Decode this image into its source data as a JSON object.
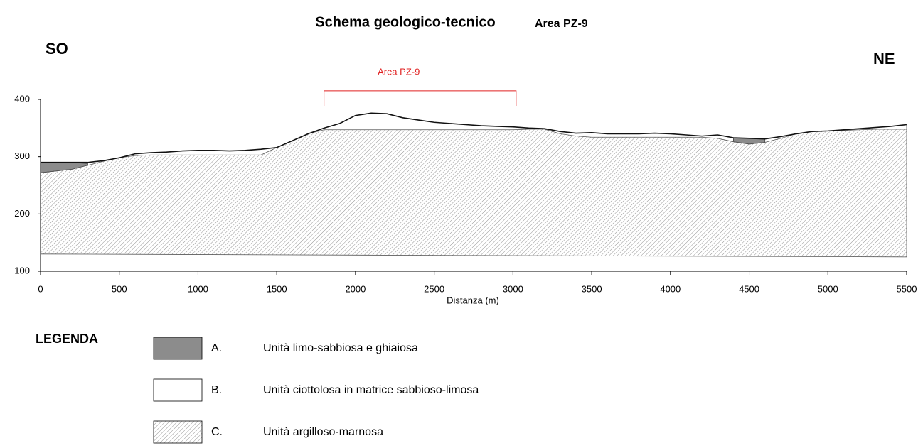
{
  "chart_data": {
    "type": "profile",
    "title": "Schema geologico-tecnico",
    "subtitle": "Area PZ-9",
    "left_label": "SO",
    "right_label": "NE",
    "xlabel": "Distanza (m)",
    "annotation": {
      "text": "Area PZ-9",
      "color": "#e02020",
      "x": [
        1800,
        3020
      ],
      "y": 415
    },
    "x": [
      0,
      100,
      200,
      300,
      400,
      500,
      600,
      700,
      800,
      900,
      1000,
      1100,
      1200,
      1300,
      1400,
      1500,
      1600,
      1700,
      1800,
      1900,
      2000,
      2100,
      2200,
      2300,
      2400,
      2500,
      2600,
      2700,
      2800,
      2900,
      3000,
      3100,
      3200,
      3300,
      3400,
      3500,
      3600,
      3700,
      3800,
      3900,
      4000,
      4100,
      4200,
      4300,
      4400,
      4500,
      4600,
      4700,
      4800,
      4900,
      5000,
      5100,
      5200,
      5300,
      5400,
      5500
    ],
    "series": [
      {
        "key": "C.",
        "name": "Unità argilloso-marnosa",
        "fill": "hatch",
        "values": [
          272,
          275,
          278,
          285,
          292,
          298,
          302,
          303,
          303,
          303,
          303,
          303,
          303,
          303,
          303,
          316,
          328,
          340,
          347,
          347,
          347,
          347,
          347,
          347,
          347,
          347,
          347,
          347,
          347,
          347,
          347,
          348,
          348,
          340,
          336,
          334,
          334,
          334,
          334,
          334,
          334,
          334,
          334,
          332,
          326,
          322,
          325,
          332,
          340,
          344,
          345,
          346,
          347,
          348,
          348,
          348
        ]
      },
      {
        "key": "B.",
        "name": "Unità ciottolosa in matrice sabbioso-limosa",
        "fill": "#ffffff",
        "values": [
          290,
          290,
          290,
          290,
          293,
          298,
          305,
          307,
          308,
          310,
          311,
          311,
          310,
          311,
          313,
          316,
          328,
          340,
          350,
          358,
          372,
          376,
          375,
          368,
          364,
          360,
          358,
          356,
          354,
          353,
          352,
          350,
          349,
          344,
          341,
          342,
          340,
          340,
          340,
          341,
          340,
          338,
          336,
          338,
          333,
          332,
          331,
          335,
          340,
          344,
          345,
          347,
          349,
          351,
          353,
          356
        ]
      },
      {
        "key": "A.",
        "name": "Unità limo-sabbiosa e ghiaiosa",
        "fill": "#8c8c8c",
        "values": [
          290,
          290,
          290,
          288,
          null,
          null,
          null,
          null,
          null,
          null,
          null,
          null,
          null,
          null,
          null,
          null,
          null,
          null,
          null,
          null,
          null,
          null,
          null,
          null,
          null,
          null,
          null,
          null,
          null,
          null,
          null,
          null,
          null,
          null,
          null,
          null,
          null,
          null,
          null,
          null,
          null,
          null,
          null,
          null,
          333,
          332,
          331,
          null,
          null,
          null,
          null,
          null,
          null,
          null,
          null,
          null
        ]
      }
    ],
    "base": {
      "x": [
        0,
        5500
      ],
      "values": [
        130,
        125
      ]
    },
    "legend_title": "LEGENDA",
    "xlim": [
      0,
      5500
    ],
    "xticks": [
      0,
      500,
      1000,
      1500,
      2000,
      2500,
      3000,
      3500,
      4000,
      4500,
      5000,
      5500
    ],
    "ylim": [
      100,
      400
    ],
    "yticks": [
      100,
      200,
      300,
      400
    ]
  }
}
